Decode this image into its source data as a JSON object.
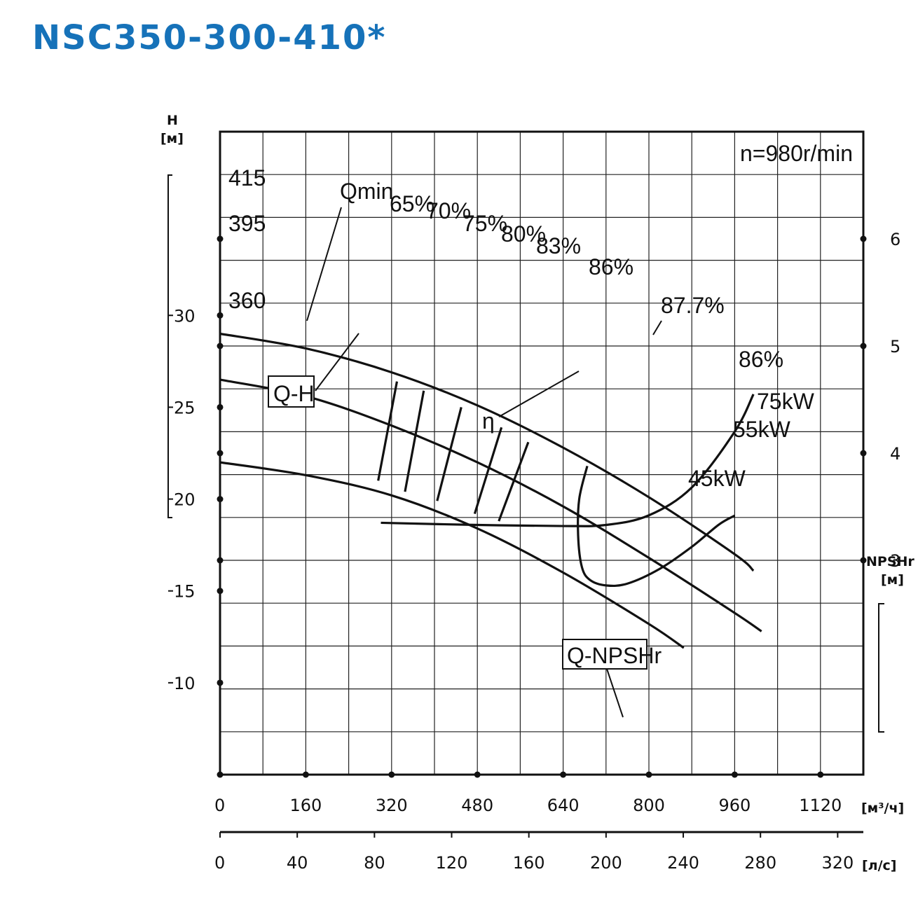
{
  "title": "NSC350-300-410*",
  "colors": {
    "title": "#1672b9",
    "ink": "#111111",
    "grid": "#222222"
  },
  "chart_data": {
    "type": "line",
    "title": "NSC350-300-410*",
    "speed_label": "n=980r/min",
    "x_axis": {
      "label": "[м³/ч]",
      "range": [
        0,
        1200
      ],
      "ticks": [
        "0",
        "160",
        "320",
        "480",
        "640",
        "800",
        "960",
        "1120"
      ]
    },
    "x2_axis": {
      "label": "[л/с]",
      "range": [
        0,
        333.3
      ],
      "ticks": [
        "0",
        "40",
        "80",
        "120",
        "160",
        "200",
        "240",
        "280",
        "320"
      ]
    },
    "y_axis": {
      "label_top": "H",
      "label_unit": "[м]",
      "range": [
        5,
        40
      ],
      "ticks": [
        "30",
        "25",
        "20",
        "15",
        "10"
      ]
    },
    "npsh_axis": {
      "label_top": "NPSHr",
      "label_unit": "[м]",
      "range": [
        1,
        7
      ],
      "ticks": [
        "6",
        "5",
        "4",
        "3"
      ]
    },
    "grid": true,
    "series": [
      {
        "name": "415",
        "x": [
          0,
          160,
          320,
          480,
          640,
          800,
          960,
          995
        ],
        "y": [
          29.0,
          28.2,
          26.9,
          25.1,
          22.8,
          20.1,
          17.0,
          16.1
        ]
      },
      {
        "name": "395",
        "x": [
          0,
          160,
          320,
          480,
          640,
          800,
          960,
          1010
        ],
        "y": [
          26.5,
          25.6,
          24.0,
          22.0,
          19.6,
          16.8,
          13.8,
          12.8
        ]
      },
      {
        "name": "360",
        "x": [
          0,
          160,
          320,
          480,
          640,
          800,
          865
        ],
        "y": [
          22.0,
          21.3,
          20.2,
          18.4,
          16.0,
          13.2,
          11.9
        ]
      },
      {
        "name": "Q-NPSHr",
        "x": [
          300,
          480,
          640,
          720,
          800,
          880,
          960,
          995
        ],
        "y": [
          3.35,
          3.33,
          3.32,
          3.33,
          3.42,
          3.68,
          4.2,
          4.55
        ]
      }
    ],
    "efficiency_lines": [
      {
        "label": "65%",
        "x": [
          330,
          295
        ],
        "y": [
          26.4,
          21.0
        ]
      },
      {
        "label": "70%",
        "x": [
          380,
          345
        ],
        "y": [
          25.9,
          20.4
        ]
      },
      {
        "label": "75%",
        "x": [
          450,
          405
        ],
        "y": [
          25.0,
          19.9
        ]
      },
      {
        "label": "80%",
        "x": [
          525,
          475
        ],
        "y": [
          23.9,
          19.2
        ]
      },
      {
        "label": "83%",
        "x": [
          575,
          520
        ],
        "y": [
          23.1,
          18.8
        ]
      }
    ],
    "efficiency_loop": {
      "label": "86%",
      "x": [
        685,
        670,
        668,
        675,
        690,
        720,
        760,
        820,
        880,
        930,
        960
      ],
      "y": [
        21.8,
        20.0,
        18.0,
        16.3,
        15.6,
        15.3,
        15.4,
        16.2,
        17.4,
        18.6,
        19.1
      ]
    },
    "annotations": [
      "Qmin",
      "87.7%",
      "Q-H",
      "η",
      "Q-NPSHr",
      "75kW",
      "55kW",
      "45kW"
    ]
  }
}
